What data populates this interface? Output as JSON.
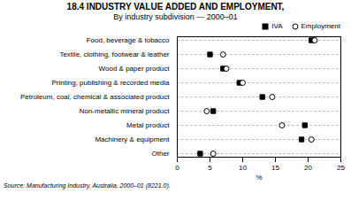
{
  "chart_data": {
    "type": "dot",
    "title": "18.4  INDUSTRY VALUE ADDED AND EMPLOYMENT,",
    "subtitle": "By industry subdivision — 2000–01",
    "source": "Source: Manufacturing Industry, Australia, 2000–01 (8221.0).",
    "orientation": "horizontal",
    "categories": [
      "Food, beverage & tobacco",
      "Textile, clothing, footwear & leather",
      "Wood & paper product",
      "Printing, publishing & recorded media",
      "Petroleum, coal, chemical & associated product",
      "Non-metallic mineral product",
      "Metal product",
      "Machinery & equipment",
      "Other"
    ],
    "series": [
      {
        "name": "IVA",
        "color": "#000000",
        "marker": "square",
        "values": [
          20.5,
          5.0,
          7.0,
          9.5,
          13.0,
          5.5,
          19.5,
          19.0,
          3.5
        ]
      },
      {
        "name": "Employment",
        "color": "#000000",
        "marker": "circle",
        "values": [
          21.0,
          7.0,
          7.5,
          10.0,
          14.5,
          4.5,
          16.0,
          20.5,
          5.5
        ]
      }
    ],
    "xlabel": "%",
    "xlim": [
      0,
      25
    ],
    "xticks": [
      0,
      5,
      10,
      15,
      20,
      25
    ],
    "grid": true,
    "legend": "right"
  }
}
